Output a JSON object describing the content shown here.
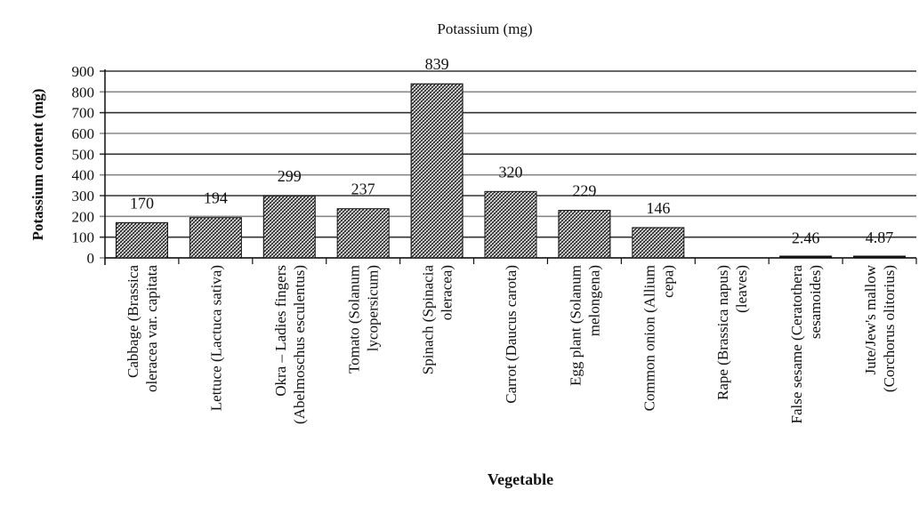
{
  "chart_data": {
    "type": "bar",
    "title": "Potassium (mg)",
    "xlabel": "Vegetable",
    "ylabel": "Potassium content (mg)",
    "ylim": [
      0,
      900
    ],
    "yticks": [
      "0",
      "100",
      "200",
      "300",
      "400",
      "500",
      "600",
      "700",
      "800",
      "900"
    ],
    "grid": true,
    "legend": "none",
    "categories": [
      [
        "Cabbage (Brassica",
        "oleracea var. capitata"
      ],
      [
        "Lettuce (Lactuca sativa)"
      ],
      [
        "Okra – Ladies fingers",
        "(Abelmoschus esculentus)"
      ],
      [
        "Tomato (Solanum",
        "lycopersicum)"
      ],
      [
        "Spinach (Spinacia",
        "oleracea)"
      ],
      [
        "Carrot (Daucus carota)"
      ],
      [
        "Egg plant (Solanum",
        "melongena)"
      ],
      [
        "Common onion (Allium",
        "cepa)"
      ],
      [
        "Rape (Brassica napus)",
        "(leaves)"
      ],
      [
        "False sesame (Ceratothera",
        "sesamoides)"
      ],
      [
        "Jute/Jew's mallow",
        "(Corchorus olitorius)"
      ]
    ],
    "values": [
      170,
      194,
      299,
      237,
      839,
      320,
      229,
      146,
      null,
      2.46,
      4.87
    ],
    "labels": [
      "170",
      "194",
      "299",
      "237",
      "839",
      "320",
      "229",
      "146",
      "",
      "2.46",
      "4.87"
    ]
  }
}
